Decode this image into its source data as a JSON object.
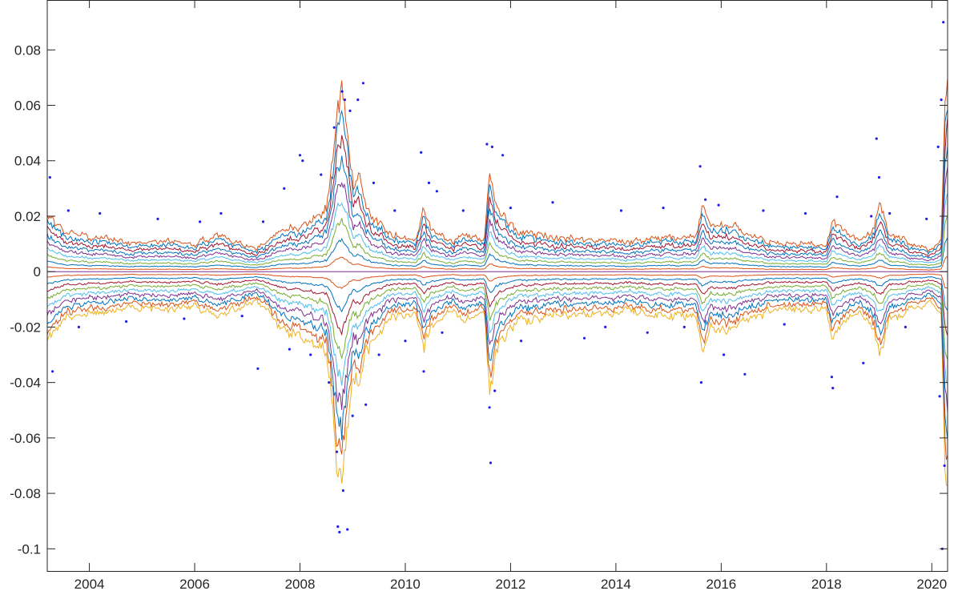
{
  "chart_data": {
    "type": "line",
    "title": "",
    "xlabel": "",
    "ylabel": "",
    "xlim": [
      2003.2,
      2020.3
    ],
    "ylim": [
      -0.108,
      0.098
    ],
    "grid": false,
    "legend": "none",
    "x_ticks": [
      {
        "value": 2004,
        "label": "2004"
      },
      {
        "value": 2006,
        "label": "2006"
      },
      {
        "value": 2008,
        "label": "2008"
      },
      {
        "value": 2010,
        "label": "2010"
      },
      {
        "value": 2012,
        "label": "2012"
      },
      {
        "value": 2014,
        "label": "2014"
      },
      {
        "value": 2016,
        "label": "2016"
      },
      {
        "value": 2018,
        "label": "2018"
      },
      {
        "value": 2020,
        "label": "2020"
      }
    ],
    "y_ticks": [
      {
        "value": 0.08,
        "label": "0.08"
      },
      {
        "value": 0.06,
        "label": "0.06"
      },
      {
        "value": 0.04,
        "label": "0.04"
      },
      {
        "value": 0.02,
        "label": "0.02"
      },
      {
        "value": 0,
        "label": "0"
      },
      {
        "value": -0.02,
        "label": "-0.02"
      },
      {
        "value": -0.04,
        "label": "-0.04"
      },
      {
        "value": -0.06,
        "label": "-0.06"
      },
      {
        "value": -0.08,
        "label": "-0.08"
      },
      {
        "value": -0.1,
        "label": "-0.1"
      }
    ],
    "band_quantiles": [
      0.05,
      0.1,
      0.15,
      0.2,
      0.25,
      0.3,
      0.35,
      0.4,
      0.45,
      0.5,
      0.55,
      0.6,
      0.65,
      0.7,
      0.75,
      0.8,
      0.85,
      0.9,
      0.95
    ],
    "band_colors": [
      "#EDB120",
      "#D95319",
      "#0072BD",
      "#7E2F8E",
      "#4DBEEE",
      "#77AC30",
      "#A2142F",
      "#0072BD",
      "#D95319",
      "#7E2F8E",
      "#D95319",
      "#0072BD",
      "#77AC30",
      "#4DBEEE",
      "#7E2F8E",
      "#0072BD",
      "#A2142F",
      "#0072BD",
      "#D95319"
    ],
    "volatility_envelope": {
      "x": [
        2003.2,
        2003.3,
        2003.5,
        2004.0,
        2004.5,
        2005.0,
        2005.5,
        2006.0,
        2006.5,
        2007.0,
        2007.3,
        2007.6,
        2007.9,
        2008.2,
        2008.5,
        2008.7,
        2008.8,
        2008.9,
        2009.0,
        2009.1,
        2009.2,
        2009.4,
        2009.6,
        2009.8,
        2010.0,
        2010.2,
        2010.35,
        2010.5,
        2010.7,
        2010.9,
        2011.2,
        2011.5,
        2011.6,
        2011.7,
        2011.9,
        2012.1,
        2012.4,
        2012.7,
        2013.0,
        2013.5,
        2014.0,
        2014.5,
        2015.0,
        2015.5,
        2015.65,
        2015.8,
        2016.1,
        2016.4,
        2016.7,
        2017.0,
        2017.5,
        2018.0,
        2018.1,
        2018.3,
        2018.6,
        2018.9,
        2019.0,
        2019.2,
        2019.5,
        2019.8,
        2020.0,
        2020.1,
        2020.18,
        2020.25,
        2020.3
      ],
      "upper": [
        0.024,
        0.02,
        0.016,
        0.014,
        0.013,
        0.012,
        0.012,
        0.011,
        0.015,
        0.01,
        0.011,
        0.016,
        0.018,
        0.02,
        0.025,
        0.06,
        0.068,
        0.055,
        0.035,
        0.038,
        0.03,
        0.02,
        0.018,
        0.015,
        0.014,
        0.013,
        0.025,
        0.016,
        0.014,
        0.013,
        0.014,
        0.013,
        0.04,
        0.028,
        0.022,
        0.018,
        0.016,
        0.015,
        0.014,
        0.013,
        0.012,
        0.013,
        0.014,
        0.015,
        0.026,
        0.018,
        0.02,
        0.016,
        0.013,
        0.012,
        0.011,
        0.01,
        0.02,
        0.016,
        0.012,
        0.018,
        0.027,
        0.015,
        0.012,
        0.01,
        0.009,
        0.01,
        0.012,
        0.06,
        0.082
      ],
      "lower": [
        -0.028,
        -0.024,
        -0.019,
        -0.017,
        -0.016,
        -0.015,
        -0.015,
        -0.014,
        -0.018,
        -0.013,
        -0.014,
        -0.022,
        -0.026,
        -0.028,
        -0.032,
        -0.072,
        -0.08,
        -0.06,
        -0.042,
        -0.045,
        -0.036,
        -0.026,
        -0.022,
        -0.019,
        -0.018,
        -0.017,
        -0.03,
        -0.021,
        -0.018,
        -0.017,
        -0.018,
        -0.017,
        -0.048,
        -0.034,
        -0.026,
        -0.022,
        -0.02,
        -0.019,
        -0.018,
        -0.017,
        -0.016,
        -0.017,
        -0.018,
        -0.019,
        -0.032,
        -0.022,
        -0.025,
        -0.02,
        -0.017,
        -0.016,
        -0.015,
        -0.014,
        -0.026,
        -0.02,
        -0.016,
        -0.024,
        -0.033,
        -0.019,
        -0.016,
        -0.014,
        -0.012,
        -0.014,
        -0.016,
        -0.07,
        -0.092
      ]
    },
    "scatter_returns": {
      "name": "",
      "color": "#1f1fe6",
      "points": [
        [
          2003.25,
          0.034
        ],
        [
          2003.3,
          -0.036
        ],
        [
          2003.6,
          0.022
        ],
        [
          2003.8,
          -0.02
        ],
        [
          2004.2,
          0.021
        ],
        [
          2004.7,
          -0.018
        ],
        [
          2005.3,
          0.019
        ],
        [
          2005.8,
          -0.017
        ],
        [
          2006.1,
          0.018
        ],
        [
          2006.5,
          0.021
        ],
        [
          2006.9,
          -0.016
        ],
        [
          2007.2,
          -0.035
        ],
        [
          2007.3,
          0.018
        ],
        [
          2007.7,
          0.03
        ],
        [
          2007.8,
          -0.028
        ],
        [
          2008.0,
          0.042
        ],
        [
          2008.05,
          0.04
        ],
        [
          2008.2,
          -0.03
        ],
        [
          2008.4,
          0.035
        ],
        [
          2008.55,
          -0.04
        ],
        [
          2008.65,
          0.052
        ],
        [
          2008.7,
          -0.065
        ],
        [
          2008.72,
          -0.092
        ],
        [
          2008.75,
          -0.094
        ],
        [
          2008.8,
          0.065
        ],
        [
          2008.82,
          -0.079
        ],
        [
          2008.85,
          0.062
        ],
        [
          2008.9,
          -0.093
        ],
        [
          2008.95,
          0.058
        ],
        [
          2009.0,
          -0.052
        ],
        [
          2009.1,
          0.062
        ],
        [
          2009.2,
          0.068
        ],
        [
          2009.25,
          -0.048
        ],
        [
          2009.4,
          0.032
        ],
        [
          2009.5,
          -0.03
        ],
        [
          2009.8,
          0.022
        ],
        [
          2010.0,
          -0.025
        ],
        [
          2010.3,
          0.043
        ],
        [
          2010.35,
          -0.036
        ],
        [
          2010.45,
          0.032
        ],
        [
          2010.6,
          0.029
        ],
        [
          2010.7,
          -0.022
        ],
        [
          2011.1,
          0.022
        ],
        [
          2011.55,
          0.046
        ],
        [
          2011.6,
          -0.049
        ],
        [
          2011.62,
          -0.069
        ],
        [
          2011.65,
          0.045
        ],
        [
          2011.7,
          -0.043
        ],
        [
          2011.85,
          0.042
        ],
        [
          2012.0,
          0.023
        ],
        [
          2012.2,
          -0.025
        ],
        [
          2012.8,
          0.025
        ],
        [
          2013.4,
          -0.024
        ],
        [
          2013.8,
          -0.02
        ],
        [
          2014.1,
          0.022
        ],
        [
          2014.6,
          -0.022
        ],
        [
          2014.9,
          0.023
        ],
        [
          2015.3,
          -0.02
        ],
        [
          2015.6,
          0.038
        ],
        [
          2015.62,
          -0.04
        ],
        [
          2015.7,
          0.026
        ],
        [
          2015.95,
          0.024
        ],
        [
          2016.05,
          -0.03
        ],
        [
          2016.45,
          -0.037
        ],
        [
          2016.8,
          0.022
        ],
        [
          2017.2,
          -0.019
        ],
        [
          2017.6,
          0.021
        ],
        [
          2018.1,
          -0.038
        ],
        [
          2018.12,
          -0.042
        ],
        [
          2018.2,
          0.027
        ],
        [
          2018.7,
          -0.033
        ],
        [
          2018.85,
          0.02
        ],
        [
          2018.95,
          0.048
        ],
        [
          2019.0,
          0.034
        ],
        [
          2019.2,
          0.021
        ],
        [
          2019.5,
          -0.02
        ],
        [
          2019.9,
          0.019
        ],
        [
          2020.12,
          0.045
        ],
        [
          2020.15,
          -0.045
        ],
        [
          2020.18,
          0.062
        ],
        [
          2020.2,
          -0.1
        ],
        [
          2020.22,
          0.09
        ],
        [
          2020.24,
          -0.07
        ]
      ]
    }
  }
}
